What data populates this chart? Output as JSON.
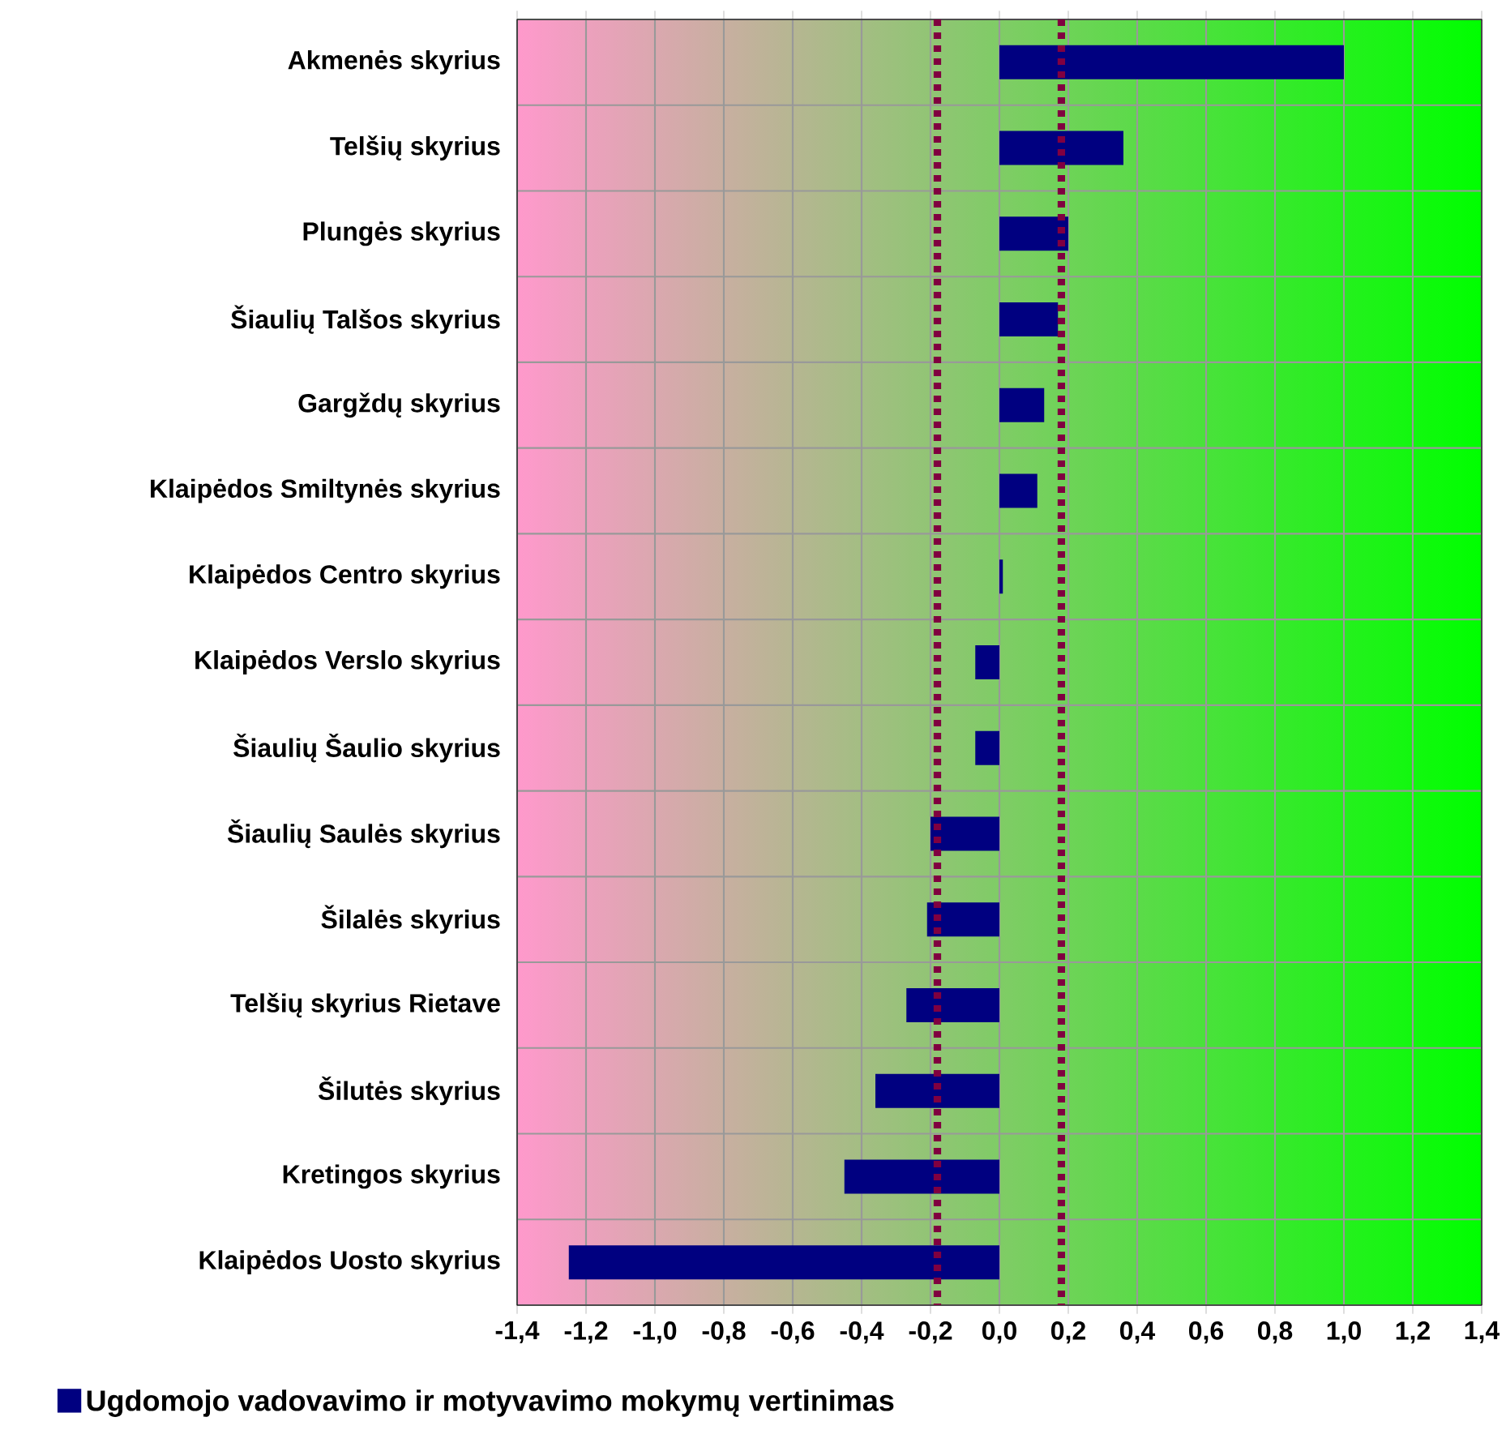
{
  "chart_data": {
    "type": "bar",
    "orientation": "horizontal",
    "categories": [
      "Akmenės skyrius",
      "Telšių skyrius",
      "Plungės skyrius",
      "Šiaulių Talšos skyrius",
      "Gargždų skyrius",
      "Klaipėdos Smiltynės skyrius",
      "Klaipėdos Centro skyrius",
      "Klaipėdos Verslo skyrius",
      "Šiaulių Šaulio skyrius",
      "Šiaulių Saulės skyrius",
      "Šilalės skyrius",
      "Telšių skyrius Rietave",
      "Šilutės skyrius",
      "Kretingos skyrius",
      "Klaipėdos Uosto skyrius"
    ],
    "series": [
      {
        "name": "Ugdomojo vadovavimo ir motyvavimo mokymų vertinimas",
        "color": "#000080",
        "values": [
          1.0,
          0.36,
          0.2,
          0.17,
          0.13,
          0.11,
          0.01,
          -0.07,
          -0.07,
          -0.2,
          -0.21,
          -0.27,
          -0.36,
          -0.45,
          -1.25
        ]
      }
    ],
    "xlim": [
      -1.4,
      1.4
    ],
    "xticks": [
      {
        "value": -1.4,
        "label": "-1,4"
      },
      {
        "value": -1.2,
        "label": "-1,2"
      },
      {
        "value": -1.0,
        "label": "-1,0"
      },
      {
        "value": -0.8,
        "label": "-0,8"
      },
      {
        "value": -0.6,
        "label": "-0,6"
      },
      {
        "value": -0.4,
        "label": "-0,4"
      },
      {
        "value": -0.2,
        "label": "-0,2"
      },
      {
        "value": 0,
        "label": "0,0"
      },
      {
        "value": 0.2,
        "label": "0,2"
      },
      {
        "value": 0.4,
        "label": "0,4"
      },
      {
        "value": 0.6,
        "label": "0,6"
      },
      {
        "value": 0.8,
        "label": "0,8"
      },
      {
        "value": 1.0,
        "label": "1,0"
      },
      {
        "value": 1.2,
        "label": "1,2"
      },
      {
        "value": 1.4,
        "label": "1,4"
      }
    ],
    "ref_lines": [
      {
        "axis": "x",
        "value": -0.18,
        "color": "#800040",
        "line_style": "dotted"
      },
      {
        "axis": "x",
        "value": 0.18,
        "color": "#800040",
        "line_style": "dotted"
      }
    ],
    "grid": true,
    "legend": "bottom"
  }
}
